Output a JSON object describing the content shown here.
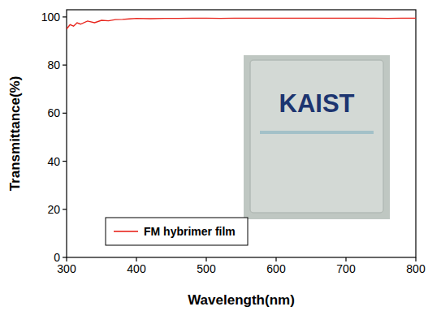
{
  "chart_data": {
    "type": "line",
    "x_label": "Wavelength(nm)",
    "y_label": "Transmittance(%)",
    "annotations": [
      "KAIST"
    ],
    "x": [
      300,
      305,
      310,
      315,
      320,
      330,
      340,
      350,
      360,
      370,
      380,
      390,
      400,
      420,
      440,
      460,
      480,
      500,
      520,
      540,
      560,
      580,
      600,
      620,
      640,
      660,
      680,
      700,
      720,
      740,
      760,
      780,
      800
    ],
    "series": [
      {
        "name": "FM hybrimer film",
        "color": "#e8241c",
        "values": [
          95.0,
          96.8,
          96.2,
          97.6,
          97.0,
          98.3,
          97.6,
          98.6,
          98.4,
          98.9,
          99.0,
          99.2,
          99.4,
          99.3,
          99.4,
          99.4,
          99.5,
          99.5,
          99.4,
          99.5,
          99.5,
          99.5,
          99.5,
          99.5,
          99.5,
          99.5,
          99.5,
          99.5,
          99.5,
          99.5,
          99.4,
          99.5,
          99.5
        ]
      }
    ],
    "xlim": [
      300,
      800
    ],
    "xticks": [
      300,
      400,
      500,
      600,
      700,
      800
    ],
    "ylim": [
      0,
      103
    ],
    "yticks": [
      0,
      20,
      40,
      60,
      80,
      100
    ],
    "legend": "lower left",
    "grid": false
  }
}
